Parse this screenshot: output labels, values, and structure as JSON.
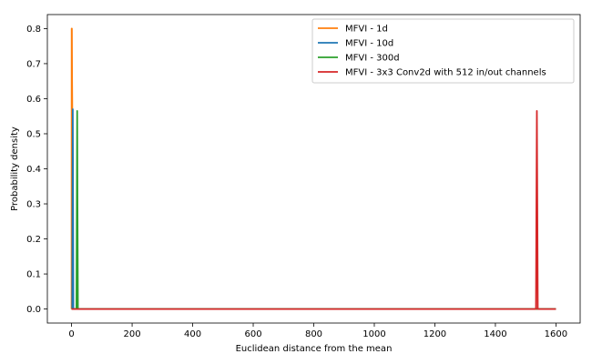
{
  "chart_data": {
    "type": "line",
    "xlabel": "Euclidean distance from the mean",
    "ylabel": "Probability density",
    "xlim": [
      -80,
      1680
    ],
    "ylim": [
      -0.04,
      0.84
    ],
    "xticks": [
      0,
      200,
      400,
      600,
      800,
      1000,
      1200,
      1400,
      1600
    ],
    "yticks": [
      0.0,
      0.1,
      0.2,
      0.3,
      0.4,
      0.5,
      0.6,
      0.7,
      0.8
    ],
    "xtick_labels": [
      "0",
      "200",
      "400",
      "600",
      "800",
      "1000",
      "1200",
      "1400",
      "1600"
    ],
    "ytick_labels": [
      "0.0",
      "0.1",
      "0.2",
      "0.3",
      "0.4",
      "0.5",
      "0.6",
      "0.7",
      "0.8"
    ],
    "grid": false,
    "legend_position": "top-right",
    "series": [
      {
        "name": "MFVI - 1d",
        "color": "#ff7f0e",
        "x": [
          0,
          0.3,
          1.0,
          1.7,
          2.5,
          3.5,
          5,
          1600
        ],
        "y": [
          0.0,
          0.8,
          0.8,
          0.65,
          0.55,
          0.35,
          0.0,
          0.0
        ]
      },
      {
        "name": "MFVI - 10d",
        "color": "#1f77b4",
        "x": [
          0,
          2,
          3,
          4,
          5,
          6,
          1600
        ],
        "y": [
          0.0,
          0.0,
          0.3,
          0.57,
          0.3,
          0.0,
          0.0
        ]
      },
      {
        "name": "MFVI - 300d",
        "color": "#2ca02c",
        "x": [
          0,
          16,
          17.3,
          18.5,
          19.5,
          21,
          1600
        ],
        "y": [
          0.0,
          0.0,
          0.3,
          0.565,
          0.3,
          0.0,
          0.0
        ]
      },
      {
        "name": "MFVI - 3x3 Conv2d with 512 in/out channels",
        "color": "#d62728",
        "x": [
          0,
          1534,
          1535.5,
          1537,
          1538.5,
          1540,
          1600
        ],
        "y": [
          0.0,
          0.0,
          0.3,
          0.565,
          0.3,
          0.0,
          0.0
        ]
      }
    ]
  }
}
